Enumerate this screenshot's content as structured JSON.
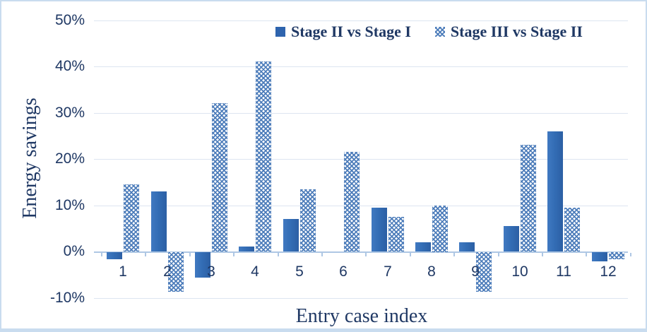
{
  "chart_data": {
    "type": "bar",
    "title": "",
    "xlabel": "Entry case index",
    "ylabel": "Energy savings",
    "categories": [
      "1",
      "2",
      "3",
      "4",
      "5",
      "6",
      "7",
      "8",
      "9",
      "10",
      "11",
      "12"
    ],
    "series": [
      {
        "name": "Stage II vs Stage I",
        "fill": "solid",
        "values": [
          -1.5,
          13,
          -5.5,
          1,
          7,
          0,
          9.5,
          2,
          2,
          5.5,
          26,
          -2
        ]
      },
      {
        "name": "Stage III vs Stage II",
        "fill": "pattern",
        "values": [
          14.5,
          -8.5,
          32,
          41,
          13.5,
          21.5,
          7.5,
          10,
          -8.5,
          23,
          9.5,
          -1.5
        ]
      }
    ],
    "ylim": [
      -10,
      50
    ],
    "ytick_step": 10,
    "ytick_labels": [
      "50%",
      "40%",
      "30%",
      "20%",
      "10%",
      "0%",
      "-10%"
    ],
    "grid": true,
    "legend_position": "top-right"
  },
  "colors": {
    "text": "#1F3864",
    "solid_bar": "#336DB5",
    "pattern_bar": "#4C7CBA",
    "gridline": "#DDE5F1",
    "axis_line": "#AEC7E4"
  }
}
